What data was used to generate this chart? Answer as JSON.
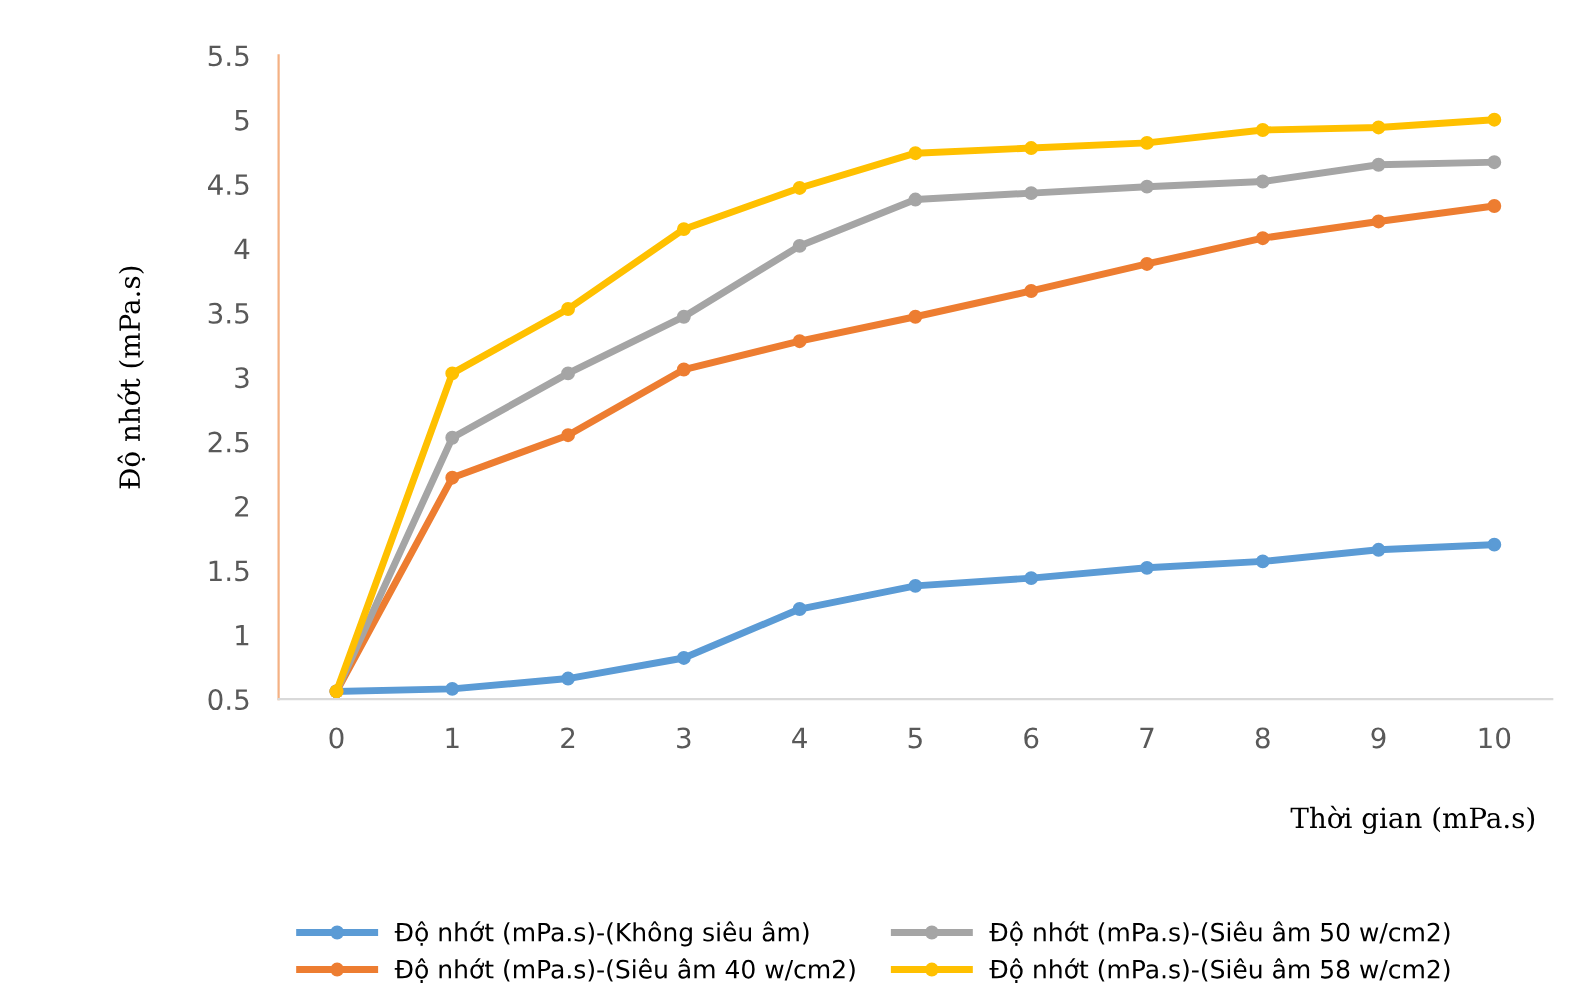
{
  "chart_data": {
    "type": "line",
    "xlabel": "Thời gian (mPa.s)",
    "ylabel": "Độ nhớt (mPa.s)",
    "categories": [
      "0",
      "1",
      "2",
      "3",
      "4",
      "5",
      "6",
      "7",
      "8",
      "9",
      "10"
    ],
    "series": [
      {
        "name": "Độ nhớt (mPa.s)-(Không siêu âm)",
        "color": "#5b9bd5",
        "values": [
          0.56,
          0.58,
          0.66,
          0.82,
          1.2,
          1.38,
          1.44,
          1.52,
          1.57,
          1.66,
          1.7
        ]
      },
      {
        "name": "Độ nhớt (mPa.s)-(Siêu âm 40 w/cm2)",
        "color": "#ed7d31",
        "values": [
          0.56,
          2.22,
          2.55,
          3.06,
          3.28,
          3.47,
          3.67,
          3.88,
          4.08,
          4.21,
          4.33
        ]
      },
      {
        "name": "Độ nhớt (mPa.s)-(Siêu âm 50 w/cm2)",
        "color": "#a5a5a5",
        "values": [
          0.56,
          2.53,
          3.03,
          3.47,
          4.02,
          4.38,
          4.43,
          4.48,
          4.52,
          4.65,
          4.67
        ]
      },
      {
        "name": "Độ nhớt (mPa.s)-(Siêu âm 58 w/cm2)",
        "color": "#ffc000",
        "values": [
          0.56,
          3.03,
          3.53,
          4.15,
          4.47,
          4.74,
          4.78,
          4.82,
          4.92,
          4.94,
          5.0
        ]
      }
    ],
    "ylim": [
      0.5,
      5.5
    ],
    "yticks": [
      0.5,
      1,
      1.5,
      2,
      2.5,
      3,
      3.5,
      4,
      4.5,
      5,
      5.5
    ],
    "grid": false,
    "legend": "bottom",
    "marker": "circle",
    "line_style": "solid"
  }
}
